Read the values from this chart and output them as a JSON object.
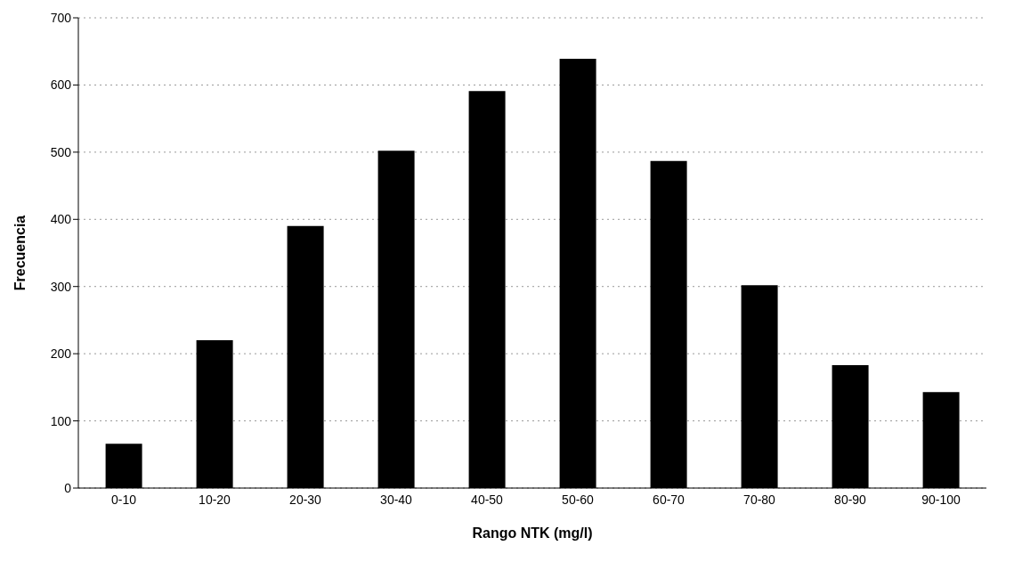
{
  "chart_data": {
    "type": "bar",
    "xlabel": "Rango NTK (mg/l)",
    "ylabel": "Frecuencia",
    "categories": [
      "0-10",
      "10-20",
      "20-30",
      "30-40",
      "40-50",
      "50-60",
      "60-70",
      "70-80",
      "80-90",
      "90-100"
    ],
    "values": [
      66,
      220,
      390,
      502,
      591,
      639,
      487,
      302,
      183,
      143
    ],
    "color": "#000000",
    "ylim": [
      0,
      700
    ],
    "yticks": [
      0,
      100,
      200,
      300,
      400,
      500,
      600,
      700
    ],
    "grid": "y"
  }
}
